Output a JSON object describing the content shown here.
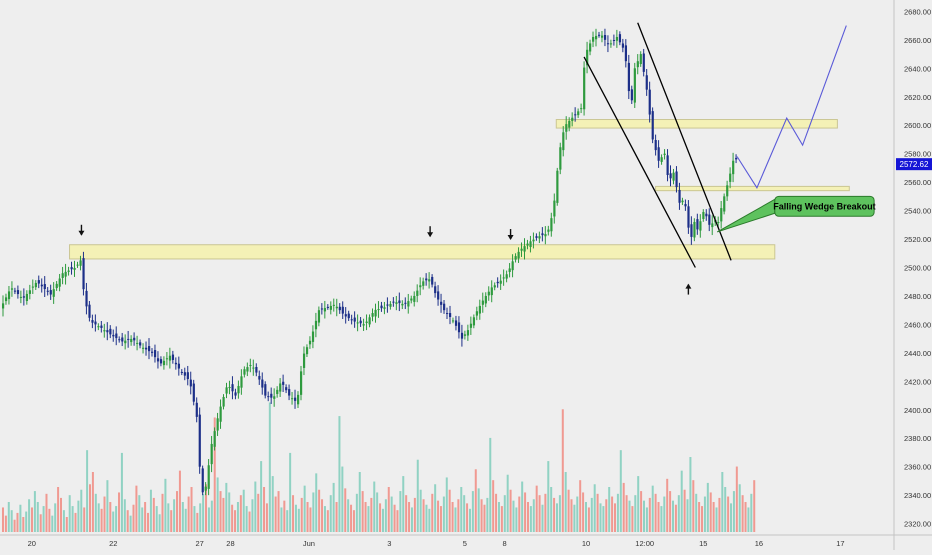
{
  "colors": {
    "background": "#eeeeee",
    "up": "#2e9a3e",
    "down": "#1c2f88",
    "volume_up": "#7fcdbb",
    "volume_down": "#f08a80",
    "zone_fill": "#f5f2b0",
    "zone_stroke": "#c7c28a",
    "projection": "#5a5ad8",
    "wedge": "#000000",
    "price_badge": "#1515d6",
    "callout_fill": "#5ec25e",
    "callout_stroke": "#2b7a2b"
  },
  "chart_data": {
    "type": "candlestick",
    "y_axis": {
      "range": [
        2312,
        2688
      ],
      "ticks": [
        "2320.00",
        "2340.00",
        "2360.00",
        "2380.00",
        "2400.00",
        "2420.00",
        "2440.00",
        "2460.00",
        "2480.00",
        "2500.00",
        "2520.00",
        "2540.00",
        "2560.00",
        "2580.00",
        "2600.00",
        "2620.00",
        "2640.00",
        "2660.00",
        "2680.00"
      ]
    },
    "x_axis": {
      "range": [
        0,
        900
      ],
      "ticks": [
        {
          "label": "20",
          "x": 32
        },
        {
          "label": "22",
          "x": 114
        },
        {
          "label": "27",
          "x": 201
        },
        {
          "label": "28",
          "x": 232
        },
        {
          "label": "Jun",
          "x": 311
        },
        {
          "label": "3",
          "x": 392
        },
        {
          "label": "5",
          "x": 468
        },
        {
          "label": "8",
          "x": 508
        },
        {
          "label": "10",
          "x": 590
        },
        {
          "label": "12:00",
          "x": 649
        },
        {
          "label": "15",
          "x": 708
        },
        {
          "label": "16",
          "x": 764
        },
        {
          "label": "17",
          "x": 846
        }
      ]
    },
    "current_price": "2572.62",
    "price_path": [
      [
        0,
        2472
      ],
      [
        10,
        2486
      ],
      [
        22,
        2478
      ],
      [
        36,
        2490
      ],
      [
        50,
        2481
      ],
      [
        62,
        2496
      ],
      [
        75,
        2500
      ],
      [
        80,
        2505
      ],
      [
        84,
        2478
      ],
      [
        90,
        2462
      ],
      [
        100,
        2458
      ],
      [
        112,
        2452
      ],
      [
        122,
        2448
      ],
      [
        132,
        2450
      ],
      [
        142,
        2444
      ],
      [
        152,
        2440
      ],
      [
        160,
        2432
      ],
      [
        170,
        2438
      ],
      [
        180,
        2428
      ],
      [
        190,
        2420
      ],
      [
        197,
        2395
      ],
      [
        200,
        2360
      ],
      [
        204,
        2336
      ],
      [
        212,
        2376
      ],
      [
        220,
        2400
      ],
      [
        228,
        2418
      ],
      [
        236,
        2410
      ],
      [
        244,
        2428
      ],
      [
        252,
        2432
      ],
      [
        258,
        2425
      ],
      [
        266,
        2410
      ],
      [
        274,
        2408
      ],
      [
        282,
        2420
      ],
      [
        290,
        2410
      ],
      [
        298,
        2405
      ],
      [
        304,
        2438
      ],
      [
        312,
        2450
      ],
      [
        320,
        2470
      ],
      [
        328,
        2472
      ],
      [
        336,
        2474
      ],
      [
        346,
        2466
      ],
      [
        356,
        2462
      ],
      [
        366,
        2460
      ],
      [
        376,
        2470
      ],
      [
        386,
        2472
      ],
      [
        396,
        2476
      ],
      [
        406,
        2474
      ],
      [
        416,
        2480
      ],
      [
        424,
        2490
      ],
      [
        432,
        2492
      ],
      [
        438,
        2480
      ],
      [
        446,
        2470
      ],
      [
        456,
        2462
      ],
      [
        464,
        2450
      ],
      [
        470,
        2456
      ],
      [
        478,
        2468
      ],
      [
        486,
        2478
      ],
      [
        494,
        2486
      ],
      [
        502,
        2490
      ],
      [
        510,
        2496
      ],
      [
        516,
        2506
      ],
      [
        522,
        2512
      ],
      [
        532,
        2518
      ],
      [
        542,
        2522
      ],
      [
        550,
        2524
      ],
      [
        556,
        2540
      ],
      [
        560,
        2568
      ],
      [
        564,
        2590
      ],
      [
        568,
        2600
      ],
      [
        576,
        2606
      ],
      [
        584,
        2612
      ],
      [
        588,
        2650
      ],
      [
        596,
        2662
      ],
      [
        604,
        2664
      ],
      [
        612,
        2656
      ],
      [
        620,
        2662
      ],
      [
        628,
        2652
      ],
      [
        634,
        2610
      ],
      [
        638,
        2640
      ],
      [
        644,
        2650
      ],
      [
        650,
        2625
      ],
      [
        656,
        2590
      ],
      [
        662,
        2575
      ],
      [
        668,
        2580
      ],
      [
        672,
        2560
      ],
      [
        678,
        2568
      ],
      [
        682,
        2545
      ],
      [
        688,
        2548
      ],
      [
        694,
        2518
      ],
      [
        698,
        2532
      ],
      [
        702,
        2525
      ],
      [
        706,
        2540
      ],
      [
        710,
        2536
      ],
      [
        714,
        2528
      ],
      [
        718,
        2534
      ],
      [
        722,
        2532
      ],
      [
        726,
        2545
      ],
      [
        730,
        2555
      ],
      [
        734,
        2566
      ],
      [
        738,
        2578
      ],
      [
        742,
        2574
      ]
    ],
    "volume_range": [
      0,
      110
    ],
    "volume_start_x": 2,
    "volume_step": 2.92,
    "volumes": [
      18,
      12,
      22,
      16,
      9,
      14,
      20,
      11,
      15,
      24,
      18,
      30,
      22,
      13,
      19,
      28,
      17,
      12,
      21,
      33,
      25,
      16,
      11,
      27,
      19,
      14,
      23,
      31,
      18,
      60,
      35,
      44,
      28,
      21,
      17,
      26,
      38,
      22,
      15,
      19,
      29,
      58,
      24,
      16,
      12,
      20,
      34,
      27,
      18,
      22,
      14,
      31,
      25,
      19,
      13,
      28,
      39,
      21,
      16,
      24,
      30,
      45,
      22,
      17,
      26,
      33,
      19,
      14,
      21,
      28,
      35,
      18,
      23,
      84,
      40,
      30,
      25,
      36,
      29,
      20,
      16,
      22,
      27,
      31,
      19,
      15,
      24,
      37,
      28,
      52,
      33,
      21,
      95,
      41,
      26,
      30,
      18,
      23,
      16,
      58,
      27,
      20,
      17,
      25,
      34,
      22,
      18,
      29,
      43,
      31,
      24,
      19,
      16,
      27,
      36,
      22,
      85,
      48,
      32,
      24,
      20,
      16,
      28,
      44,
      30,
      22,
      19,
      25,
      37,
      29,
      21,
      17,
      24,
      33,
      26,
      20,
      16,
      30,
      41,
      27,
      22,
      18,
      25,
      53,
      31,
      24,
      20,
      17,
      28,
      35,
      23,
      19,
      26,
      40,
      31,
      22,
      18,
      24,
      33,
      27,
      21,
      17,
      30,
      46,
      32,
      24,
      20,
      25,
      69,
      38,
      28,
      22,
      19,
      27,
      42,
      31,
      23,
      18,
      26,
      37,
      29,
      22,
      19,
      24,
      34,
      27,
      20,
      28,
      52,
      33,
      25,
      21,
      27,
      90,
      44,
      31,
      24,
      20,
      26,
      38,
      29,
      22,
      18,
      25,
      35,
      28,
      21,
      19,
      24,
      33,
      26,
      21,
      28,
      60,
      36,
      27,
      23,
      19,
      27,
      41,
      30,
      23,
      18,
      25,
      34,
      28,
      22,
      19,
      26,
      39,
      30,
      23,
      20,
      27,
      45,
      31,
      24,
      55,
      38,
      28,
      22,
      19,
      26,
      36,
      29,
      22,
      18,
      25,
      44,
      33,
      26,
      21,
      30,
      48,
      35,
      27,
      22,
      18,
      28,
      38
    ],
    "zones": [
      {
        "x0": 70,
        "x1": 780,
        "y0": 2506,
        "y1": 2516
      },
      {
        "x0": 560,
        "x1": 843,
        "y0": 2598,
        "y1": 2604
      },
      {
        "x0": 660,
        "x1": 855,
        "y0": 2554,
        "y1": 2557
      }
    ],
    "wedge_lines": [
      {
        "from": [
          588,
          2648
        ],
        "to": [
          700,
          2500
        ]
      },
      {
        "from": [
          642,
          2672
        ],
        "to": [
          736,
          2505
        ]
      }
    ],
    "projection_path": [
      [
        742,
        2578
      ],
      [
        762,
        2556
      ],
      [
        792,
        2605
      ],
      [
        808,
        2586
      ],
      [
        852,
        2670
      ]
    ],
    "arrows_down": [
      {
        "x": 82,
        "price": 2523
      },
      {
        "x": 433,
        "price": 2522
      },
      {
        "x": 514,
        "price": 2520
      }
    ],
    "arrows_up": [
      {
        "x": 693,
        "price": 2488
      }
    ],
    "annotation": {
      "text": "Falling Wedge Breakout",
      "anchor": [
        722,
        2525
      ],
      "box_x0": 780,
      "box_x1": 880,
      "box_y_top": 2550,
      "box_y_bottom": 2536
    }
  }
}
